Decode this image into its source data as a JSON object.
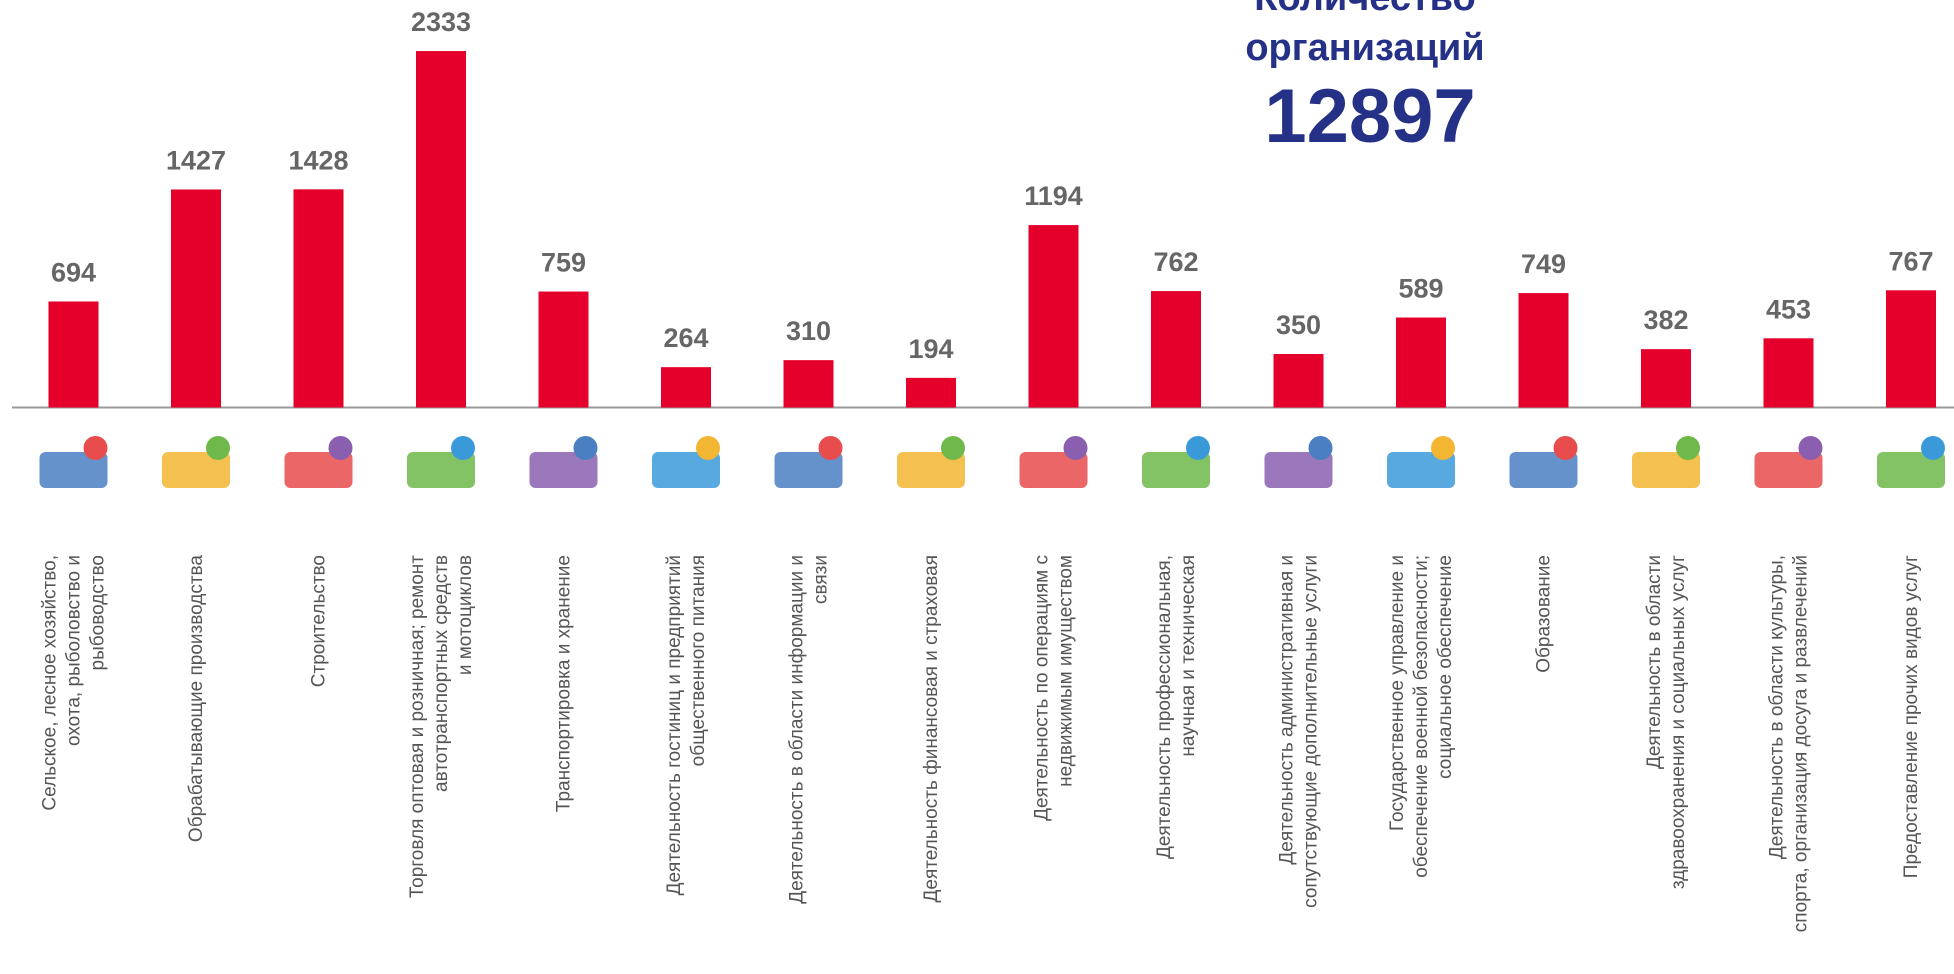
{
  "chart_data": {
    "type": "bar",
    "title": [
      "Количество",
      "организаций"
    ],
    "total": 12897,
    "color": "#e4002b",
    "categories": [
      [
        "Сельское, лесное хозяйство,",
        "охота, рыболовство и",
        "рыбоводство"
      ],
      [
        "Обрабатывающие производства"
      ],
      [
        "Строительство"
      ],
      [
        "Торговля оптовая и розничная; ремонт",
        "автотранспортных средств",
        "и мотоциклов"
      ],
      [
        "Транспортировка и хранение"
      ],
      [
        "Деятельность гостиниц и предприятий",
        "общественного питания"
      ],
      [
        "Деятельность в области информации и",
        "связи"
      ],
      [
        "Деятельность финансовая и страховая"
      ],
      [
        "Деятельность по операциям с",
        "недвижимым имуществом"
      ],
      [
        "Деятельность профессиональная,",
        "научная и техническая"
      ],
      [
        "Деятельность административная и",
        "сопутствующие дополнительные услуги"
      ],
      [
        "Государственное управление и",
        "обеспечение  военной безопасности;",
        "социальное обеспечение"
      ],
      [
        "Образование"
      ],
      [
        "Деятельность в области",
        "здравоохранения  и социальных услуг"
      ],
      [
        "Деятельность  в области культуры,",
        "спорта, организация досуга и развлечений"
      ],
      [
        "Предоставление прочих видов услуг"
      ]
    ],
    "values": [
      694,
      1427,
      1428,
      2333,
      759,
      264,
      310,
      194,
      1194,
      762,
      350,
      589,
      749,
      382,
      453,
      767
    ]
  }
}
